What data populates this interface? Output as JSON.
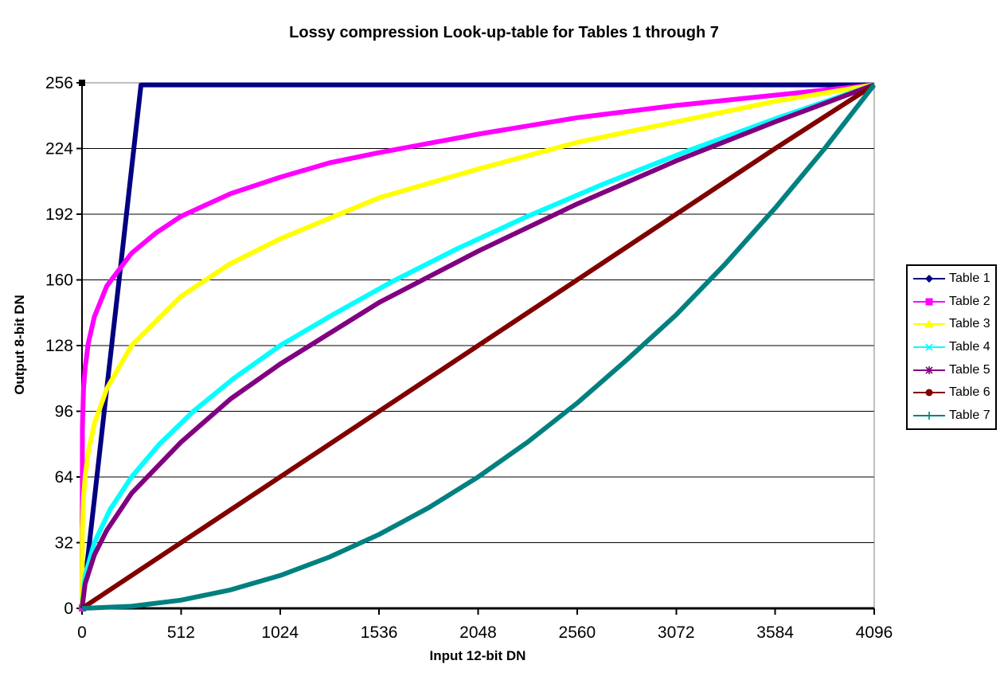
{
  "chart_data": {
    "type": "line",
    "title": "Lossy compression Look-up-table for Tables 1 through 7",
    "xlabel": "Input 12-bit DN",
    "ylabel": "Output 8-bit DN",
    "xlim": [
      0,
      4096
    ],
    "ylim": [
      0,
      256
    ],
    "x_ticks": [
      0,
      512,
      1024,
      1536,
      2048,
      2560,
      3072,
      3584,
      4096
    ],
    "y_ticks": [
      0,
      32,
      64,
      96,
      128,
      160,
      192,
      224,
      256
    ],
    "grid": "horizontal",
    "grid_color": "#000000",
    "top_border_color": "#808080",
    "right_border_color": "#808080",
    "plot_background": "#FFFFFF",
    "legend_position": "right",
    "legend_items": [
      "Table 1",
      "Table 2",
      "Table 3",
      "Table 4",
      "Table 5",
      "Table 6",
      "Table 7"
    ],
    "series": [
      {
        "name": "Table 1",
        "color": "#000080",
        "marker": "diamond",
        "points": [
          [
            0,
            0
          ],
          [
            64,
            53
          ],
          [
            128,
            107
          ],
          [
            192,
            160
          ],
          [
            256,
            214
          ],
          [
            305,
            255
          ],
          [
            512,
            255
          ],
          [
            1024,
            255
          ],
          [
            2048,
            255
          ],
          [
            3072,
            255
          ],
          [
            4095,
            255
          ]
        ]
      },
      {
        "name": "Table 2",
        "color": "#FF00FF",
        "marker": "square",
        "points": [
          [
            0,
            0
          ],
          [
            2,
            88
          ],
          [
            8,
            107
          ],
          [
            16,
            117
          ],
          [
            32,
            129
          ],
          [
            64,
            142
          ],
          [
            128,
            157
          ],
          [
            256,
            173
          ],
          [
            384,
            183
          ],
          [
            512,
            191
          ],
          [
            768,
            202
          ],
          [
            1024,
            210
          ],
          [
            1280,
            217
          ],
          [
            1536,
            222
          ],
          [
            2048,
            231
          ],
          [
            2560,
            239
          ],
          [
            3072,
            245
          ],
          [
            3584,
            250
          ],
          [
            4095,
            255
          ]
        ]
      },
      {
        "name": "Table 3",
        "color": "#FFFF00",
        "marker": "triangle",
        "points": [
          [
            0,
            0
          ],
          [
            2,
            38
          ],
          [
            8,
            54
          ],
          [
            16,
            64
          ],
          [
            32,
            76
          ],
          [
            64,
            90
          ],
          [
            128,
            107
          ],
          [
            256,
            128
          ],
          [
            512,
            152
          ],
          [
            768,
            168
          ],
          [
            1024,
            180
          ],
          [
            1536,
            200
          ],
          [
            2048,
            214
          ],
          [
            2560,
            227
          ],
          [
            3072,
            237
          ],
          [
            3584,
            247
          ],
          [
            4095,
            255
          ]
        ]
      },
      {
        "name": "Table 4",
        "color": "#00FFFF",
        "marker": "x",
        "points": [
          [
            0,
            0
          ],
          [
            16,
            16
          ],
          [
            64,
            32
          ],
          [
            144,
            48
          ],
          [
            256,
            64
          ],
          [
            400,
            80
          ],
          [
            576,
            96
          ],
          [
            784,
            112
          ],
          [
            1024,
            128
          ],
          [
            1296,
            143
          ],
          [
            1600,
            159
          ],
          [
            1936,
            175
          ],
          [
            2304,
            191
          ],
          [
            2704,
            207
          ],
          [
            3136,
            223
          ],
          [
            3600,
            239
          ],
          [
            4095,
            255
          ]
        ]
      },
      {
        "name": "Table 5",
        "color": "#800080",
        "marker": "star",
        "points": [
          [
            0,
            0
          ],
          [
            16,
            12
          ],
          [
            64,
            26
          ],
          [
            128,
            38
          ],
          [
            256,
            56
          ],
          [
            512,
            81
          ],
          [
            768,
            102
          ],
          [
            1024,
            119
          ],
          [
            1536,
            149
          ],
          [
            2048,
            174
          ],
          [
            2560,
            197
          ],
          [
            3072,
            218
          ],
          [
            3584,
            237
          ],
          [
            4095,
            255
          ]
        ]
      },
      {
        "name": "Table 6",
        "color": "#800000",
        "marker": "circle",
        "points": [
          [
            0,
            0
          ],
          [
            512,
            32
          ],
          [
            1024,
            64
          ],
          [
            1536,
            96
          ],
          [
            2048,
            128
          ],
          [
            2560,
            160
          ],
          [
            3072,
            192
          ],
          [
            3584,
            224
          ],
          [
            4095,
            255
          ]
        ]
      },
      {
        "name": "Table 7",
        "color": "#008080",
        "marker": "plus",
        "points": [
          [
            0,
            0
          ],
          [
            256,
            1
          ],
          [
            512,
            4
          ],
          [
            768,
            9
          ],
          [
            1024,
            16
          ],
          [
            1280,
            25
          ],
          [
            1536,
            36
          ],
          [
            1792,
            49
          ],
          [
            2048,
            64
          ],
          [
            2304,
            81
          ],
          [
            2560,
            100
          ],
          [
            2816,
            121
          ],
          [
            3072,
            143
          ],
          [
            3328,
            168
          ],
          [
            3584,
            195
          ],
          [
            3840,
            224
          ],
          [
            4095,
            255
          ]
        ]
      }
    ]
  }
}
